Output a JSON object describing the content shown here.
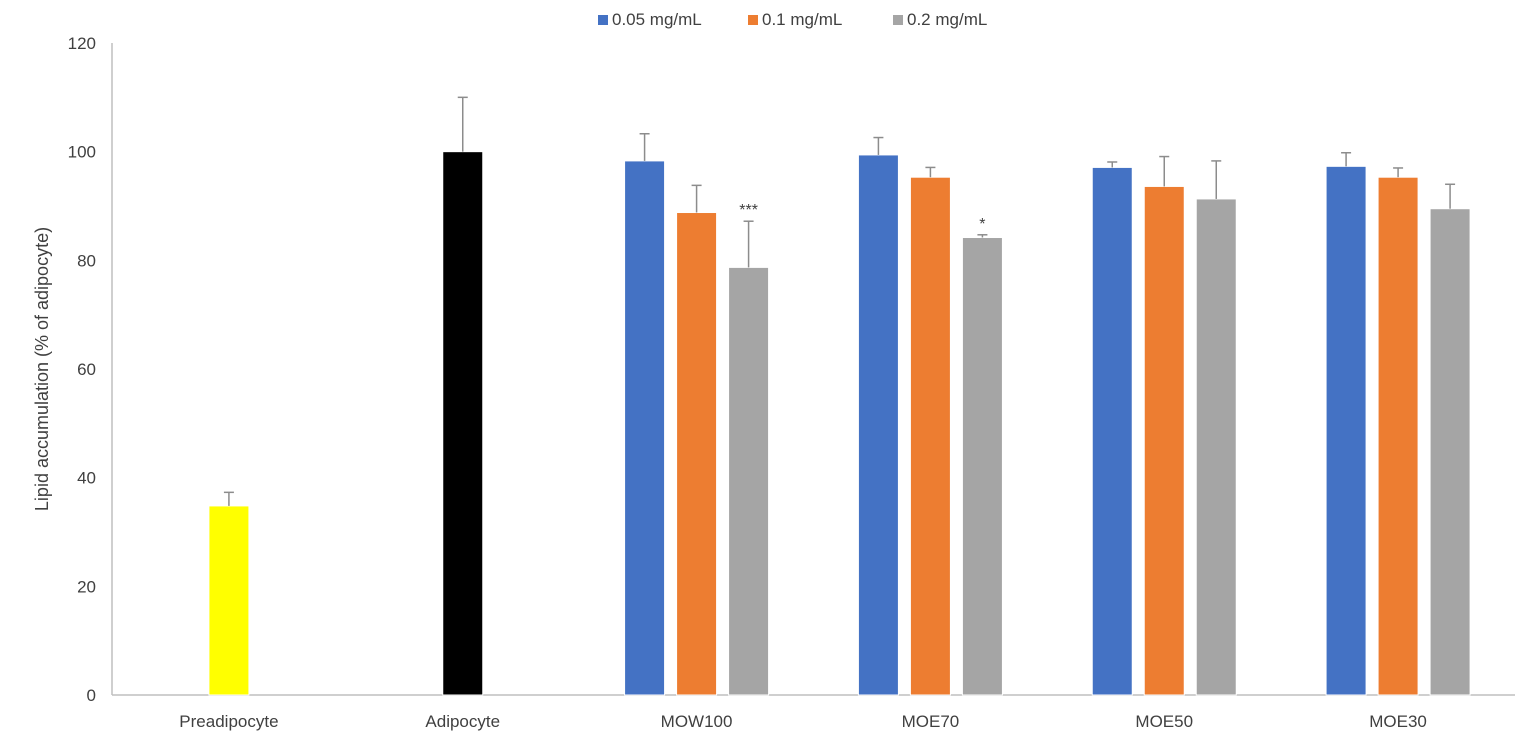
{
  "chart_data": {
    "type": "bar",
    "title": "",
    "ylabel": "Lipid accumulation (% of adipocyte)",
    "xlabel": "",
    "ylim": [
      0,
      120
    ],
    "yticks": [
      0,
      20,
      40,
      60,
      80,
      100,
      120
    ],
    "grid": false,
    "legend_position": "top-center",
    "categories": [
      "Preadipocyte",
      "Adipocyte",
      "MOW100",
      "MOE70",
      "MOE50",
      "MOE30"
    ],
    "legend": [
      {
        "name": "0.05 mg/mL",
        "color": "#4472C4"
      },
      {
        "name": "0.1 mg/mL",
        "color": "#ED7D31"
      },
      {
        "name": "0.2 mg/mL",
        "color": "#A5A5A5"
      }
    ],
    "groups": [
      {
        "category": "Preadipocyte",
        "bars": [
          {
            "value": 34.8,
            "error": 2.5,
            "color": "#FFFF00",
            "annotation": ""
          }
        ]
      },
      {
        "category": "Adipocyte",
        "bars": [
          {
            "value": 100,
            "error": 10,
            "color": "#000000",
            "annotation": ""
          }
        ]
      },
      {
        "category": "MOW100",
        "bars": [
          {
            "series": "0.05 mg/mL",
            "value": 98.3,
            "error": 5,
            "color": "#4472C4",
            "annotation": ""
          },
          {
            "series": "0.1 mg/mL",
            "value": 88.8,
            "error": 5,
            "color": "#ED7D31",
            "annotation": ""
          },
          {
            "series": "0.2 mg/mL",
            "value": 78.7,
            "error": 8.5,
            "color": "#A5A5A5",
            "annotation": "***"
          }
        ]
      },
      {
        "category": "MOE70",
        "bars": [
          {
            "series": "0.05 mg/mL",
            "value": 99.4,
            "error": 3.2,
            "color": "#4472C4",
            "annotation": ""
          },
          {
            "series": "0.1 mg/mL",
            "value": 95.3,
            "error": 1.8,
            "color": "#ED7D31",
            "annotation": ""
          },
          {
            "series": "0.2 mg/mL",
            "value": 84.2,
            "error": 0.5,
            "color": "#A5A5A5",
            "annotation": "*"
          }
        ]
      },
      {
        "category": "MOE50",
        "bars": [
          {
            "series": "0.05 mg/mL",
            "value": 97.1,
            "error": 1.0,
            "color": "#4472C4",
            "annotation": ""
          },
          {
            "series": "0.1 mg/mL",
            "value": 93.6,
            "error": 5.5,
            "color": "#ED7D31",
            "annotation": ""
          },
          {
            "series": "0.2 mg/mL",
            "value": 91.3,
            "error": 7,
            "color": "#A5A5A5",
            "annotation": ""
          }
        ]
      },
      {
        "category": "MOE30",
        "bars": [
          {
            "series": "0.05 mg/mL",
            "value": 97.3,
            "error": 2.5,
            "color": "#4472C4",
            "annotation": ""
          },
          {
            "series": "0.1 mg/mL",
            "value": 95.3,
            "error": 1.7,
            "color": "#ED7D31",
            "annotation": ""
          },
          {
            "series": "0.2 mg/mL",
            "value": 89.5,
            "error": 4.5,
            "color": "#A5A5A5",
            "annotation": ""
          }
        ]
      }
    ]
  }
}
